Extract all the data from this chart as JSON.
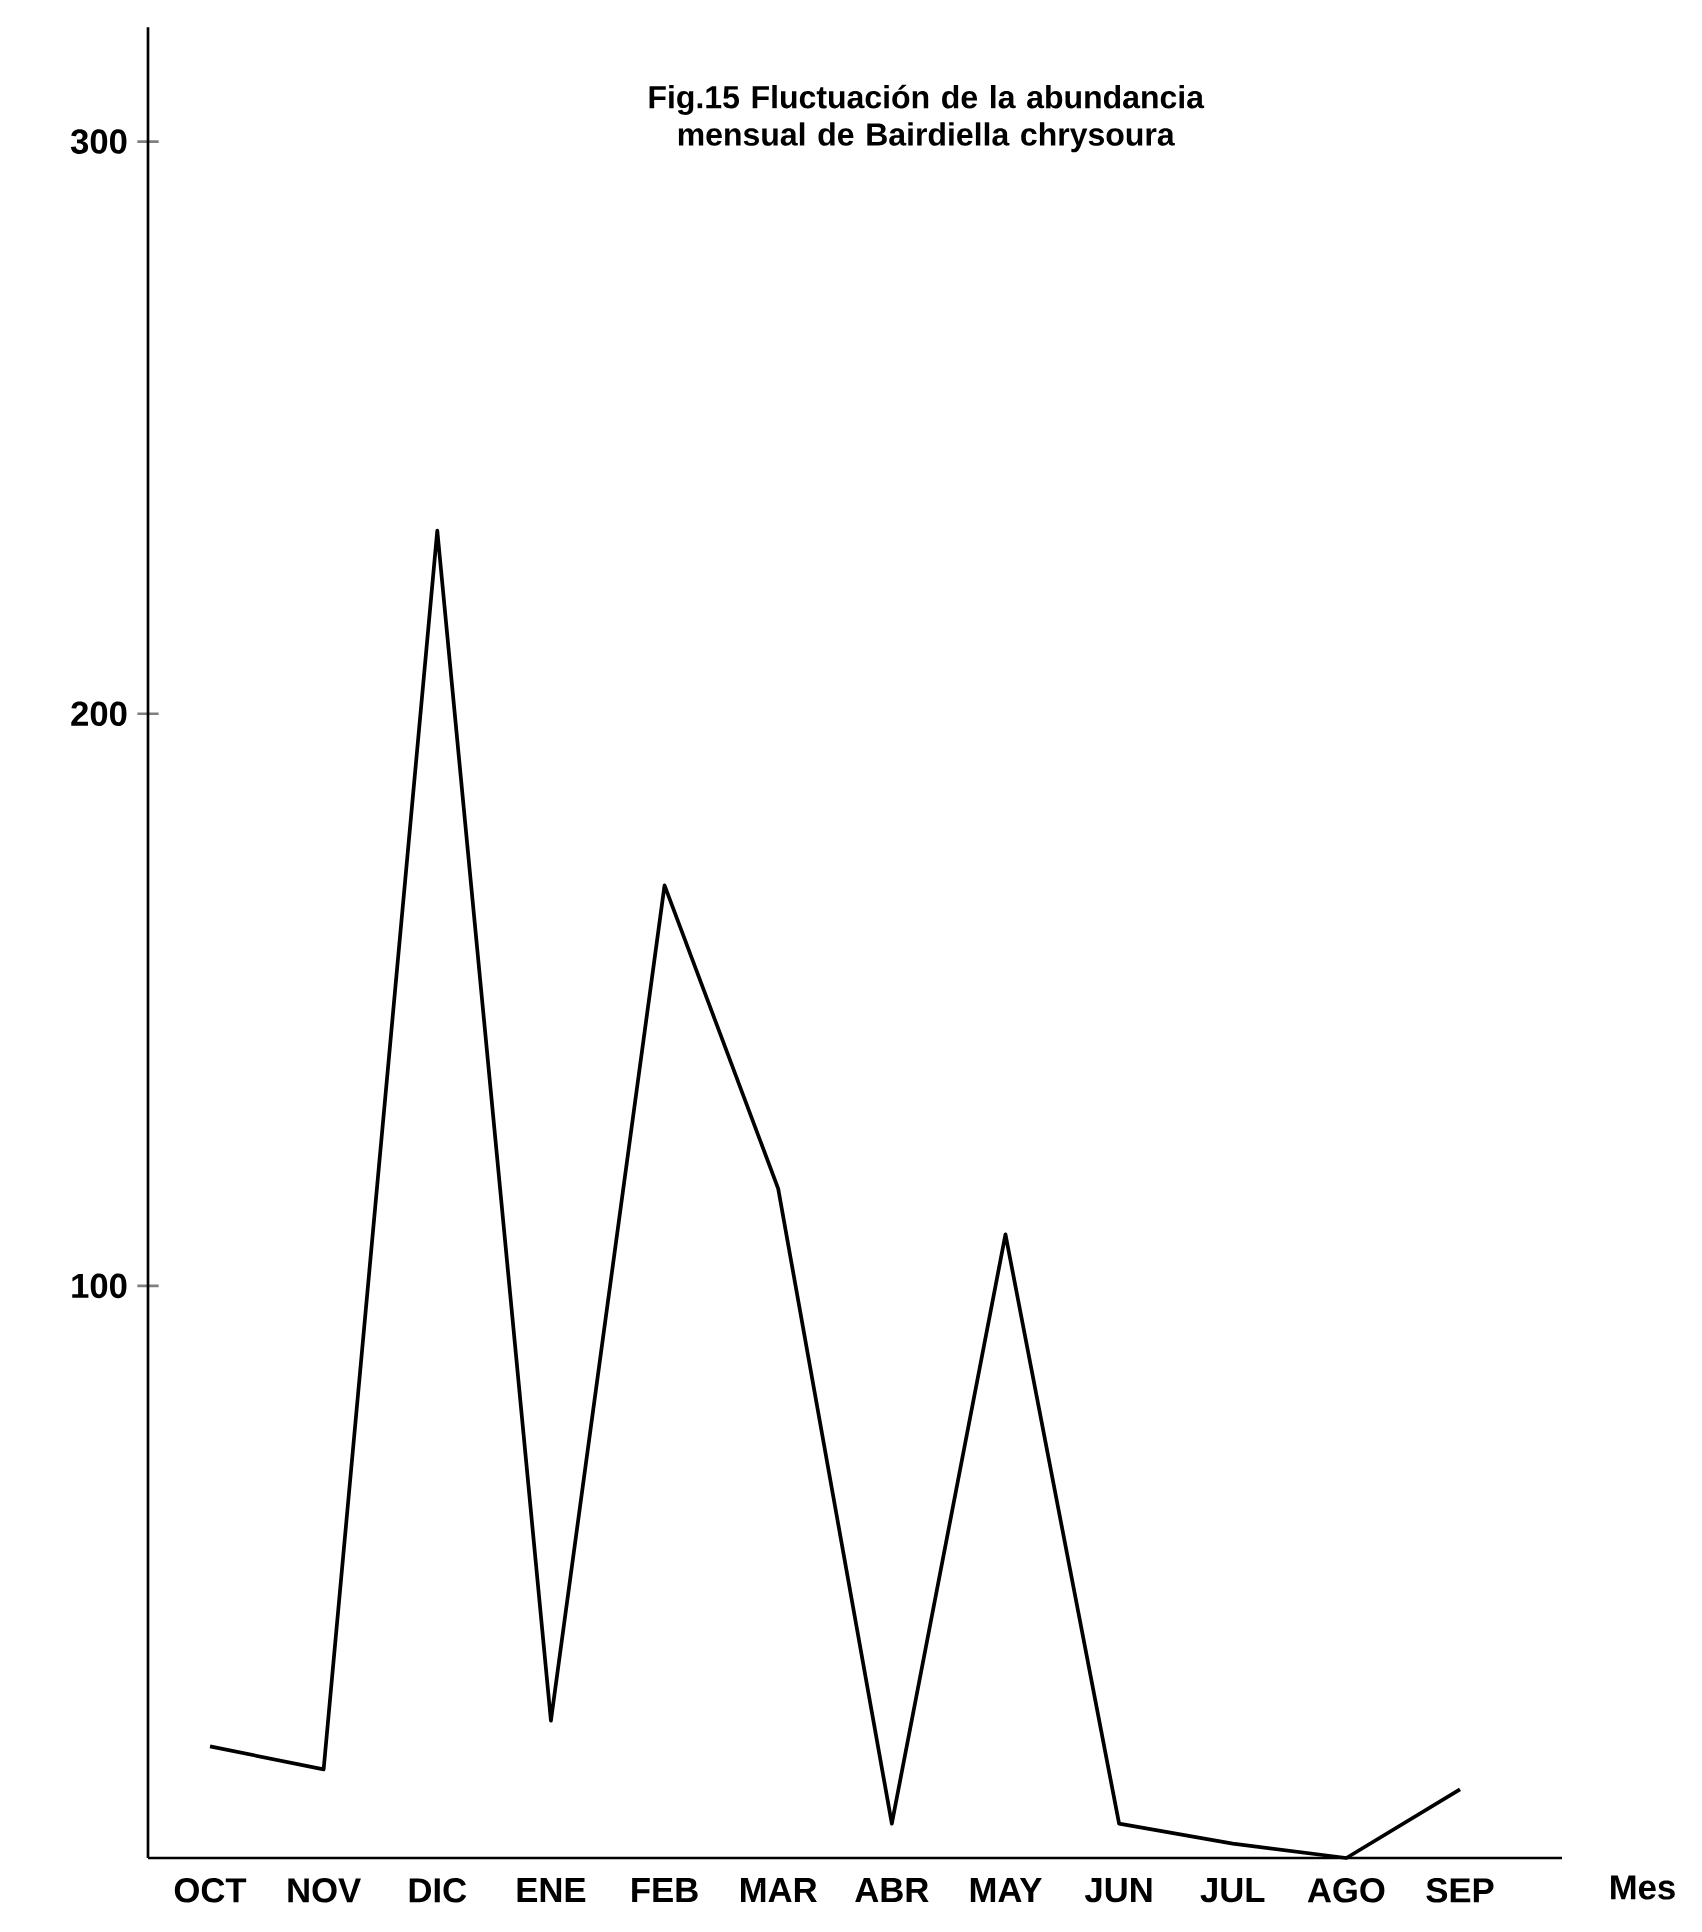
{
  "chart_data": {
    "type": "line",
    "title": "Fig.15 Fluctuación de la abundancia mensual de Bairdiella chrysoura",
    "xlabel": "Mes",
    "categories": [
      "OCT",
      "NOV",
      "DIC",
      "ENE",
      "FEB",
      "MAR",
      "ABR",
      "MAY",
      "JUN",
      "JUL",
      "AGO",
      "SEP"
    ],
    "series": [
      {
        "color": "#000000",
        "values": [
          19.5,
          15.5,
          232,
          24,
          170,
          117,
          6,
          109,
          6,
          2.5,
          0,
          12
        ]
      }
    ],
    "ylim": [
      0,
      320
    ],
    "yticks": [
      100,
      200,
      300
    ],
    "marker": "none",
    "line_style": "solid"
  }
}
